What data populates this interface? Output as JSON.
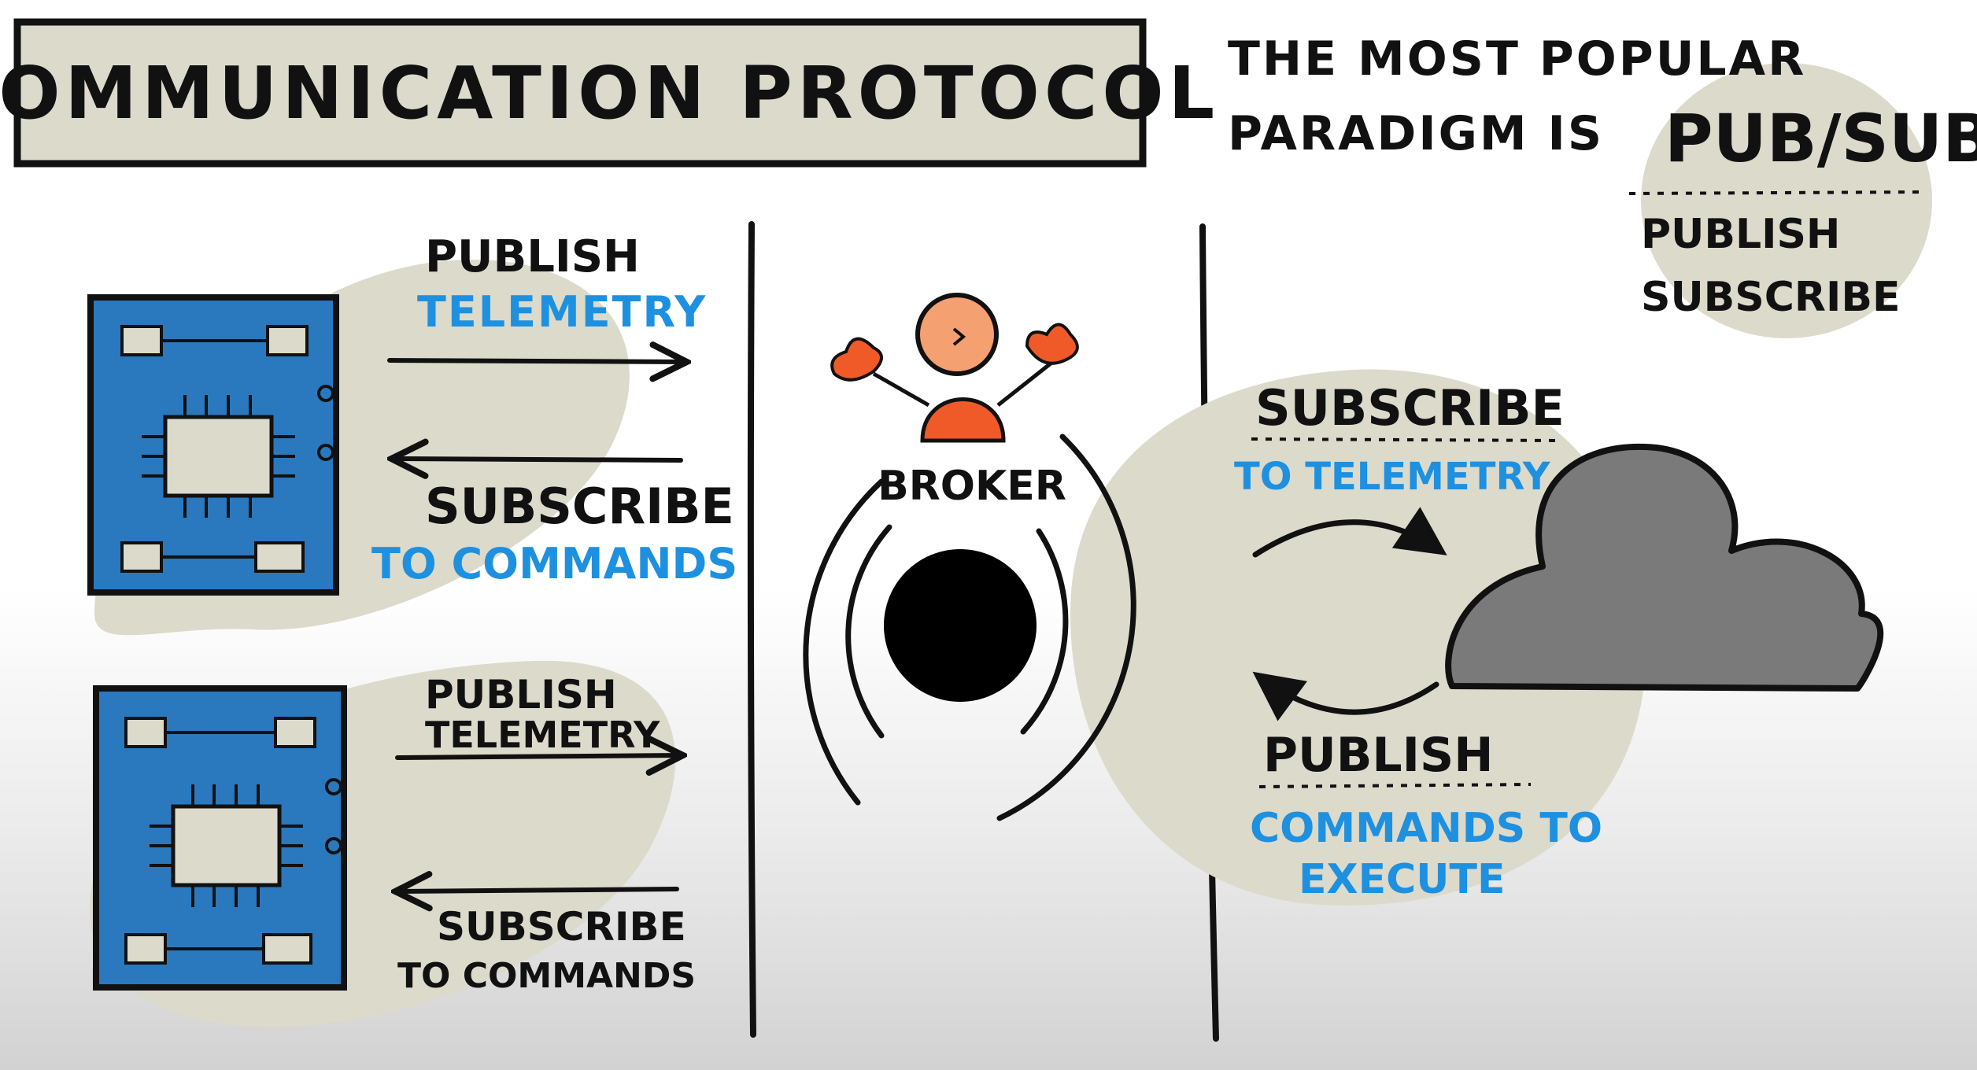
{
  "title": "COMMUNICATION PROTOCOL",
  "headline": {
    "line1": "THE MOST POPULAR",
    "line2_prefix": "PARADIGM IS",
    "highlight": "PUB/SUB",
    "expansion_line1": "PUBLISH",
    "expansion_line2": "SUBSCRIBE"
  },
  "device_top": {
    "publish_label": "PUBLISH",
    "publish_topic": "TELEMETRY",
    "subscribe_label": "SUBSCRIBE",
    "subscribe_topic": "TO COMMANDS"
  },
  "device_bottom": {
    "publish_line1": "PUBLISH",
    "publish_line2": "TELEMETRY",
    "subscribe_line1": "SUBSCRIBE",
    "subscribe_line2": "TO COMMANDS"
  },
  "broker": {
    "label": "BROKER"
  },
  "cloud": {
    "subscribe_label": "SUBSCRIBE",
    "subscribe_topic": "TO TELEMETRY",
    "publish_label": "PUBLISH",
    "publish_topic_line1": "COMMANDS TO",
    "publish_topic_line2": "EXECUTE"
  },
  "colors": {
    "blob": "#dcdacb",
    "board": "#2a78bd",
    "topic_text": "#1e90e0",
    "cloud": "#7a7a7a",
    "person_head": "#f4a070",
    "person_body": "#f05a28",
    "ink": "#111111"
  }
}
